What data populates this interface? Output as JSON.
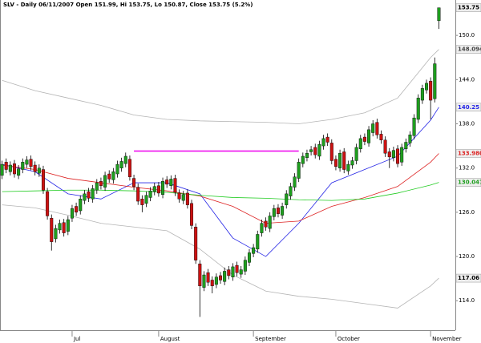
{
  "chart_data": {
    "type": "candlestick",
    "title": "SLV - Daily 06/11/2007 Open 151.99, Hi 153.75, Lo 150.87, Close 153.75 (5.2%)",
    "xlim": [
      -0.5,
      110
    ],
    "ylim": [
      110,
      154.8
    ],
    "xticks": [
      {
        "value": 17,
        "label": "Jul"
      },
      {
        "value": 38,
        "label": "August"
      },
      {
        "value": 61,
        "label": "September"
      },
      {
        "value": 81,
        "label": "October"
      },
      {
        "value": 104,
        "label": "November"
      }
    ],
    "yticks": [
      {
        "value": 114,
        "label": "114.0"
      },
      {
        "value": 120,
        "label": "120.0"
      },
      {
        "value": 126,
        "label": "126.0"
      },
      {
        "value": 132,
        "label": "132.0"
      },
      {
        "value": 138,
        "label": "138.0"
      },
      {
        "value": 144,
        "label": "144.0"
      },
      {
        "value": 150,
        "label": "150.0"
      }
    ],
    "up_color": "#1e9e1e",
    "down_color": "#cc1111",
    "open": [
      131.0,
      132.8,
      131.5,
      132.6,
      131.0,
      131.8,
      132.5,
      133.2,
      132.4,
      131.3,
      131.8,
      128.8,
      125.2,
      122.4,
      123.6,
      124.6,
      123.4,
      125.2,
      126.8,
      126.2,
      127.6,
      128.8,
      127.8,
      129.0,
      130.2,
      129.4,
      131.2,
      130.4,
      131.2,
      132.0,
      132.6,
      133.2,
      130.6,
      129.4,
      127.8,
      127.2,
      128.0,
      128.8,
      129.6,
      128.4,
      130.4,
      129.6,
      130.6,
      128.6,
      127.6,
      128.6,
      127.2,
      124.0,
      119.0,
      115.8,
      117.8,
      116.8,
      116.2,
      117.4,
      116.6,
      118.2,
      117.2,
      118.8,
      117.6,
      118.0,
      119.2,
      120.4,
      121.0,
      123.2,
      124.8,
      123.8,
      125.4,
      126.6,
      125.6,
      127.0,
      128.2,
      129.4,
      130.6,
      132.6,
      133.4,
      134.2,
      134.8,
      133.6,
      135.0,
      136.2,
      135.4,
      133.2,
      132.0,
      134.2,
      131.6,
      132.4,
      133.0,
      134.6,
      136.2,
      135.4,
      136.8,
      138.2,
      136.6,
      135.8,
      134.2,
      133.4,
      134.6,
      132.8,
      134.6,
      135.4,
      136.4,
      138.6,
      141.2,
      142.6,
      143.8,
      141.4,
      151.99
    ],
    "high": [
      133.0,
      133.3,
      132.9,
      133.1,
      132.4,
      133.3,
      133.6,
      133.7,
      132.9,
      132.5,
      132.3,
      129.3,
      125.7,
      124.3,
      125.0,
      125.1,
      125.5,
      127.0,
      127.3,
      128.3,
      129.0,
      129.3,
      129.7,
      130.5,
      130.7,
      131.5,
      131.7,
      132.0,
      133.0,
      133.4,
      134.1,
      133.7,
      131.1,
      129.9,
      128.3,
      128.8,
      129.4,
      130.0,
      130.1,
      130.7,
      130.9,
      131.0,
      131.1,
      129.1,
      128.9,
      129.1,
      127.7,
      124.5,
      119.5,
      118.0,
      118.3,
      117.3,
      117.7,
      117.9,
      118.5,
      118.7,
      119.1,
      119.3,
      118.7,
      120.0,
      121.0,
      121.7,
      123.5,
      125.0,
      125.3,
      126.0,
      127.0,
      127.1,
      127.3,
      129.0,
      130.0,
      131.3,
      133.3,
      134.1,
      134.5,
      135.0,
      135.3,
      135.7,
      136.5,
      136.7,
      135.9,
      133.7,
      134.5,
      134.7,
      133.0,
      133.5,
      135.3,
      136.5,
      136.7,
      137.7,
      138.5,
      138.7,
      137.1,
      136.3,
      134.7,
      134.9,
      135.1,
      135.3,
      136.0,
      137.0,
      139.3,
      142.0,
      143.3,
      144.0,
      144.3,
      147.0,
      153.75
    ],
    "low": [
      130.5,
      131.3,
      131.0,
      130.7,
      130.5,
      131.3,
      132.0,
      131.7,
      131.0,
      130.8,
      128.5,
      125.0,
      120.8,
      121.9,
      123.1,
      122.7,
      122.9,
      124.7,
      125.5,
      125.7,
      127.1,
      127.4,
      127.3,
      128.5,
      129.1,
      128.9,
      130.0,
      129.9,
      130.7,
      131.5,
      132.1,
      130.3,
      129.0,
      127.0,
      126.0,
      126.7,
      127.5,
      128.3,
      128.1,
      127.9,
      129.3,
      129.1,
      128.2,
      127.3,
      127.1,
      126.5,
      123.7,
      119.0,
      111.8,
      115.3,
      116.0,
      115.0,
      115.7,
      116.3,
      116.1,
      116.9,
      116.7,
      117.3,
      117.1,
      117.5,
      118.7,
      119.9,
      120.5,
      122.7,
      123.5,
      123.3,
      124.9,
      125.3,
      125.1,
      126.5,
      127.7,
      128.9,
      130.1,
      132.1,
      132.9,
      133.7,
      133.3,
      133.1,
      134.5,
      135.0,
      132.5,
      131.7,
      131.5,
      131.3,
      131.1,
      131.9,
      132.5,
      134.1,
      135.1,
      134.9,
      136.3,
      136.0,
      135.3,
      133.5,
      132.0,
      132.9,
      132.1,
      132.3,
      134.1,
      134.9,
      135.9,
      138.1,
      140.7,
      142.1,
      138.6,
      140.9,
      150.87
    ],
    "close": [
      132.5,
      131.8,
      132.4,
      131.2,
      131.9,
      132.8,
      133.1,
      132.2,
      131.5,
      132.0,
      129.0,
      125.5,
      122.0,
      123.8,
      124.5,
      123.2,
      125.0,
      126.5,
      126.0,
      127.8,
      128.5,
      127.9,
      129.2,
      130.0,
      129.6,
      131.0,
      130.5,
      131.5,
      132.5,
      132.9,
      133.6,
      130.8,
      129.5,
      127.5,
      127.0,
      128.3,
      128.9,
      129.5,
      128.6,
      130.2,
      129.8,
      130.5,
      128.7,
      127.8,
      128.4,
      127.0,
      124.2,
      119.5,
      116.0,
      117.5,
      116.5,
      116.0,
      117.2,
      116.8,
      118.0,
      117.4,
      118.6,
      117.8,
      118.2,
      119.5,
      120.5,
      121.2,
      123.0,
      124.5,
      124.0,
      125.5,
      126.5,
      125.8,
      126.8,
      128.5,
      129.5,
      130.8,
      132.8,
      133.6,
      134.0,
      134.5,
      133.8,
      135.2,
      136.0,
      135.5,
      133.0,
      132.2,
      134.0,
      131.8,
      132.5,
      133.0,
      134.8,
      136.0,
      135.6,
      137.2,
      138.0,
      136.5,
      135.8,
      134.0,
      133.5,
      134.4,
      132.6,
      134.8,
      135.5,
      136.5,
      138.8,
      141.5,
      142.8,
      143.5,
      141.2,
      146.15,
      153.75
    ],
    "lines": [
      {
        "color": "#b4b4b4",
        "x": [
          0,
          8,
          16,
          24,
          32,
          40,
          48,
          56,
          64,
          72,
          80,
          88,
          96,
          104,
          106
        ],
        "values": [
          143.9,
          142.5,
          141.5,
          140.5,
          139.2,
          138.6,
          138.4,
          138.3,
          138.2,
          138.0,
          138.6,
          139.5,
          141.5,
          147.0,
          148.094
        ]
      },
      {
        "color": "#b4b4b4",
        "x": [
          0,
          8,
          16,
          24,
          32,
          40,
          48,
          56,
          64,
          72,
          80,
          88,
          96,
          104,
          106
        ],
        "values": [
          127.0,
          126.6,
          125.6,
          124.5,
          124.0,
          123.5,
          121.0,
          117.5,
          115.3,
          114.6,
          114.2,
          113.6,
          113.0,
          116.0,
          117.06
        ]
      },
      {
        "color": "#2626e6",
        "x": [
          0,
          8,
          16,
          24,
          32,
          40,
          48,
          56,
          64,
          72,
          80,
          88,
          96,
          104,
          106
        ],
        "values": [
          132.5,
          131.5,
          128.5,
          127.8,
          130.0,
          130.0,
          128.5,
          122.5,
          120.0,
          124.5,
          130.0,
          131.8,
          133.6,
          138.5,
          140.25
        ]
      },
      {
        "color": "#dd2222",
        "x": [
          0,
          8,
          16,
          24,
          32,
          40,
          48,
          56,
          64,
          72,
          80,
          88,
          96,
          104,
          106
        ],
        "values": [
          132.4,
          131.8,
          130.6,
          130.0,
          129.4,
          128.9,
          128.2,
          126.8,
          124.5,
          124.8,
          126.8,
          128.0,
          129.5,
          132.8,
          133.98
        ]
      },
      {
        "color": "#22cc22",
        "x": [
          0,
          8,
          16,
          24,
          32,
          40,
          48,
          56,
          64,
          72,
          80,
          88,
          96,
          104,
          106
        ],
        "values": [
          128.8,
          128.9,
          129.0,
          129.0,
          128.9,
          128.7,
          128.3,
          128.0,
          127.9,
          127.7,
          127.6,
          127.8,
          128.6,
          129.7,
          130.047
        ]
      }
    ],
    "level": {
      "color": "#ee00ee",
      "x": [
        32,
        72
      ],
      "value": 134.3
    },
    "end_labels": [
      {
        "value": 153.75,
        "label": "153.75",
        "color": "#000000"
      },
      {
        "value": 148.094,
        "label": "148.094",
        "color": "#444444"
      },
      {
        "value": 140.25,
        "label": "140.25",
        "color": "#2626e6"
      },
      {
        "value": 133.98,
        "label": "133.980",
        "color": "#dd2222"
      },
      {
        "value": 130.047,
        "label": "130.047",
        "color": "#1e9e1e"
      },
      {
        "value": 117.06,
        "label": "117.06",
        "color": "#000000"
      }
    ]
  }
}
